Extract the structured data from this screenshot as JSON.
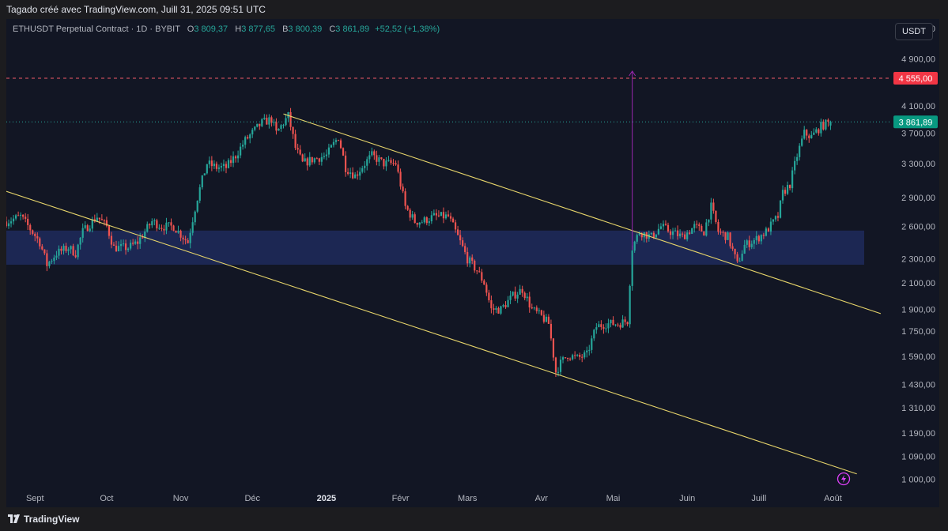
{
  "header": {
    "caption": "Tagado créé avec TradingView.com, Juill 31, 2025 09:51 UTC"
  },
  "legend": {
    "symbol": "ETHUSDT Perpetual Contract · 1D · BYBIT",
    "o_label": "O",
    "o_value": "3 809,37",
    "h_label": "H",
    "h_value": "3 877,65",
    "b_label": "B",
    "b_value": "3 800,39",
    "c_label": "C",
    "c_value": "3 861,89",
    "change": "+52,52 (+1,38%)"
  },
  "currency": "USDT",
  "footer": {
    "brand": "TradingView"
  },
  "colors": {
    "up": "#26a69a",
    "down": "#ef5350",
    "zone": "#1e2a5c",
    "channel": "#e6d46a",
    "target_line": "#f05a68",
    "arrow": "#9c27b0"
  },
  "chart_data": {
    "type": "candlestick",
    "symbol": "ETHUSDT",
    "interval": "1D",
    "exchange": "BYBIT",
    "y_scale": "log",
    "ylim": [
      960,
      5700
    ],
    "y_ticks": [
      {
        "value": 5500,
        "label": "5 500,00"
      },
      {
        "value": 4900,
        "label": "4 900,00"
      },
      {
        "value": 4100,
        "label": "4 100,00"
      },
      {
        "value": 3700,
        "label": "3 700,00"
      },
      {
        "value": 3300,
        "label": "3 300,00"
      },
      {
        "value": 2900,
        "label": "2 900,00"
      },
      {
        "value": 2600,
        "label": "2 600,00"
      },
      {
        "value": 2300,
        "label": "2 300,00"
      },
      {
        "value": 2100,
        "label": "2 100,00"
      },
      {
        "value": 1900,
        "label": "1 900,00"
      },
      {
        "value": 1750,
        "label": "1 750,00"
      },
      {
        "value": 1590,
        "label": "1 590,00"
      },
      {
        "value": 1430,
        "label": "1 430,00"
      },
      {
        "value": 1310,
        "label": "1 310,00"
      },
      {
        "value": 1190,
        "label": "1 190,00"
      },
      {
        "value": 1090,
        "label": "1 090,00"
      },
      {
        "value": 1000,
        "label": "1 000,00"
      }
    ],
    "xlim": [
      "2024-08-20",
      "2025-08-25"
    ],
    "x_ticks": [
      {
        "date": "2024-09-01",
        "label": "Sept",
        "bold": false
      },
      {
        "date": "2024-10-01",
        "label": "Oct",
        "bold": false
      },
      {
        "date": "2024-11-01",
        "label": "Nov",
        "bold": false
      },
      {
        "date": "2024-12-01",
        "label": "Déc",
        "bold": false
      },
      {
        "date": "2025-01-01",
        "label": "2025",
        "bold": true
      },
      {
        "date": "2025-02-01",
        "label": "Févr",
        "bold": false
      },
      {
        "date": "2025-03-01",
        "label": "Mars",
        "bold": false
      },
      {
        "date": "2025-04-01",
        "label": "Avr",
        "bold": false
      },
      {
        "date": "2025-05-01",
        "label": "Mai",
        "bold": false
      },
      {
        "date": "2025-06-01",
        "label": "Juin",
        "bold": false
      },
      {
        "date": "2025-07-01",
        "label": "Juill",
        "bold": false
      },
      {
        "date": "2025-08-01",
        "label": "Août",
        "bold": false
      }
    ],
    "price_path": [
      [
        "2024-08-20",
        2650
      ],
      [
        "2024-08-26",
        2700
      ],
      [
        "2024-09-03",
        2450
      ],
      [
        "2024-09-06",
        2250
      ],
      [
        "2024-09-10",
        2350
      ],
      [
        "2024-09-15",
        2400
      ],
      [
        "2024-09-18",
        2350
      ],
      [
        "2024-09-21",
        2550
      ],
      [
        "2024-09-27",
        2700
      ],
      [
        "2024-10-01",
        2600
      ],
      [
        "2024-10-04",
        2400
      ],
      [
        "2024-10-10",
        2400
      ],
      [
        "2024-10-14",
        2450
      ],
      [
        "2024-10-20",
        2650
      ],
      [
        "2024-10-24",
        2600
      ],
      [
        "2024-10-29",
        2600
      ],
      [
        "2024-11-04",
        2450
      ],
      [
        "2024-11-08",
        2900
      ],
      [
        "2024-11-12",
        3300
      ],
      [
        "2024-11-16",
        3250
      ],
      [
        "2024-11-20",
        3250
      ],
      [
        "2024-11-24",
        3400
      ],
      [
        "2024-11-28",
        3600
      ],
      [
        "2024-12-05",
        3850
      ],
      [
        "2024-12-09",
        3900
      ],
      [
        "2024-12-11",
        3700
      ],
      [
        "2024-12-16",
        3950
      ],
      [
        "2024-12-19",
        3500
      ],
      [
        "2024-12-22",
        3300
      ],
      [
        "2024-12-26",
        3350
      ],
      [
        "2025-01-01",
        3400
      ],
      [
        "2025-01-06",
        3650
      ],
      [
        "2025-01-09",
        3250
      ],
      [
        "2025-01-13",
        3150
      ],
      [
        "2025-01-17",
        3300
      ],
      [
        "2025-01-20",
        3400
      ],
      [
        "2025-01-25",
        3300
      ],
      [
        "2025-01-30",
        3300
      ],
      [
        "2025-02-03",
        2800
      ],
      [
        "2025-02-07",
        2650
      ],
      [
        "2025-02-10",
        2650
      ],
      [
        "2025-02-15",
        2700
      ],
      [
        "2025-02-21",
        2700
      ],
      [
        "2025-02-25",
        2500
      ],
      [
        "2025-03-01",
        2300
      ],
      [
        "2025-03-05",
        2200
      ],
      [
        "2025-03-08",
        2100
      ],
      [
        "2025-03-11",
        1900
      ],
      [
        "2025-03-15",
        1900
      ],
      [
        "2025-03-20",
        2000
      ],
      [
        "2025-03-24",
        2050
      ],
      [
        "2025-03-28",
        1900
      ],
      [
        "2025-04-01",
        1850
      ],
      [
        "2025-04-04",
        1800
      ],
      [
        "2025-04-07",
        1500
      ],
      [
        "2025-04-09",
        1550
      ],
      [
        "2025-04-12",
        1600
      ],
      [
        "2025-04-16",
        1580
      ],
      [
        "2025-04-20",
        1600
      ],
      [
        "2025-04-24",
        1780
      ],
      [
        "2025-04-28",
        1800
      ],
      [
        "2025-05-03",
        1800
      ],
      [
        "2025-05-07",
        1820
      ],
      [
        "2025-05-09",
        2400
      ],
      [
        "2025-05-12",
        2550
      ],
      [
        "2025-05-17",
        2500
      ],
      [
        "2025-05-21",
        2600
      ],
      [
        "2025-05-25",
        2550
      ],
      [
        "2025-05-30",
        2500
      ],
      [
        "2025-06-04",
        2600
      ],
      [
        "2025-06-08",
        2550
      ],
      [
        "2025-06-11",
        2800
      ],
      [
        "2025-06-14",
        2550
      ],
      [
        "2025-06-18",
        2500
      ],
      [
        "2025-06-22",
        2250
      ],
      [
        "2025-06-25",
        2420
      ],
      [
        "2025-06-30",
        2480
      ],
      [
        "2025-07-04",
        2550
      ],
      [
        "2025-07-09",
        2700
      ],
      [
        "2025-07-11",
        2950
      ],
      [
        "2025-07-14",
        3050
      ],
      [
        "2025-07-17",
        3400
      ],
      [
        "2025-07-20",
        3700
      ],
      [
        "2025-07-23",
        3650
      ],
      [
        "2025-07-27",
        3800
      ],
      [
        "2025-07-31",
        3861.89
      ]
    ],
    "last": {
      "open": 3809.37,
      "high": 3877.65,
      "low": 3800.39,
      "close": 3861.89,
      "change": 52.52,
      "change_pct": 1.38
    },
    "last_label": "3 861,89",
    "target_level": {
      "value": 4555,
      "label": "4 555,00"
    },
    "support_zone": {
      "from": 2250,
      "to": 2560
    },
    "channel": {
      "upper": {
        "from": [
          "2024-12-14",
          3980
        ],
        "to": [
          "2025-08-21",
          1870
        ]
      },
      "lower": {
        "from": [
          "2024-08-20",
          2970
        ],
        "to": [
          "2025-08-11",
          1020
        ]
      }
    },
    "arrow": {
      "date": "2025-05-09",
      "from": 2380,
      "to": 4680
    }
  }
}
